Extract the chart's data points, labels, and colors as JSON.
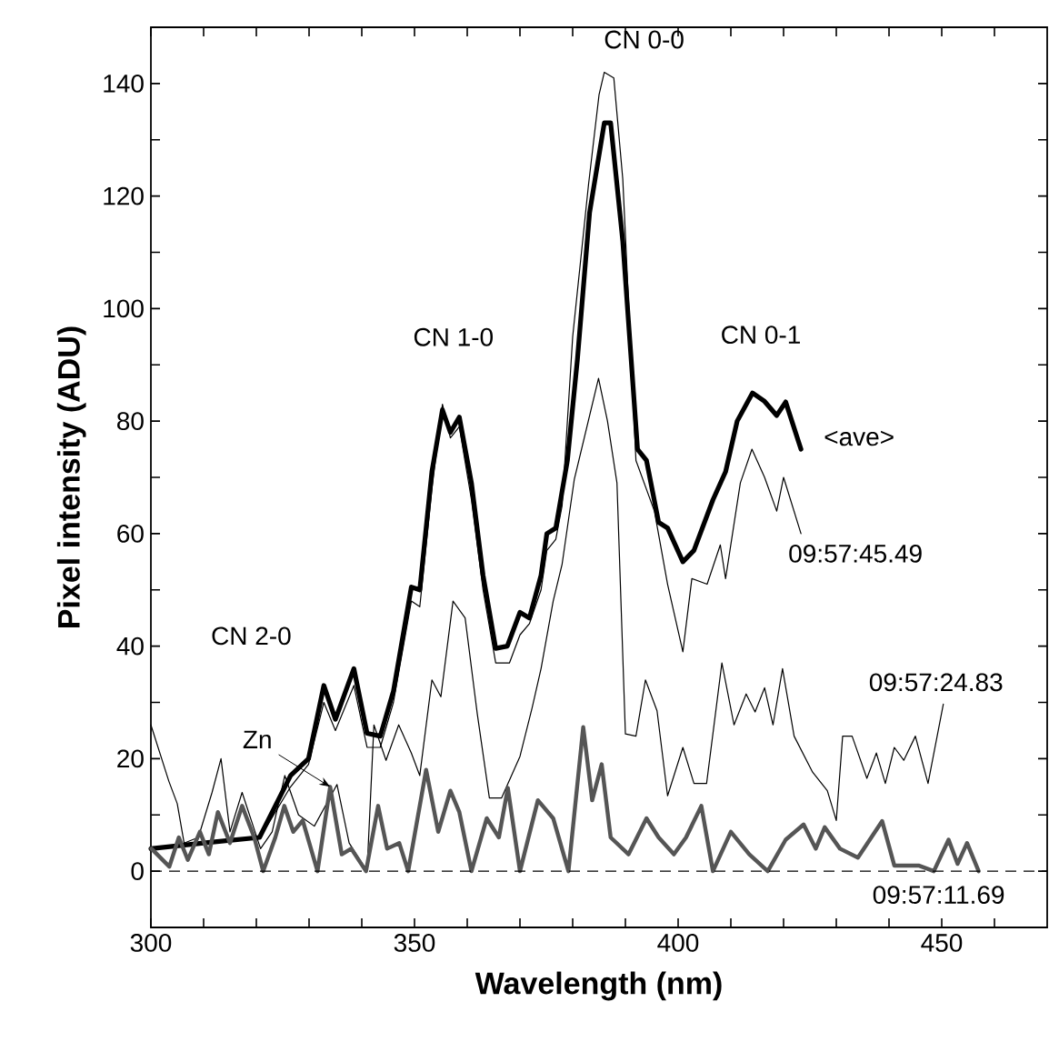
{
  "chart_data": {
    "type": "line",
    "xlabel": "Wavelength (nm)",
    "ylabel": "Pixel intensity (ADU)",
    "xlim": [
      300,
      470
    ],
    "ylim": [
      -10,
      150
    ],
    "xticks": [
      300,
      {
        "value": 310,
        "label": null
      },
      {
        "value": 320,
        "label": null
      },
      {
        "value": 330,
        "label": null
      },
      {
        "value": 340,
        "label": null
      },
      350,
      {
        "value": 360,
        "label": null
      },
      {
        "value": 370,
        "label": null
      },
      {
        "value": 380,
        "label": null
      },
      {
        "value": 390,
        "label": null
      },
      400,
      {
        "value": 410,
        "label": null
      },
      {
        "value": 420,
        "label": null
      },
      {
        "value": 430,
        "label": null
      },
      {
        "value": 440,
        "label": null
      },
      450,
      {
        "value": 460,
        "label": null
      }
    ],
    "yticks": [
      {
        "value": -10,
        "label": null
      },
      0,
      {
        "value": 10,
        "label": null
      },
      20,
      {
        "value": 30,
        "label": null
      },
      40,
      {
        "value": 50,
        "label": null
      },
      60,
      {
        "value": 70,
        "label": null
      },
      80,
      {
        "value": 90,
        "label": null
      },
      100,
      {
        "value": 110,
        "label": null
      },
      120,
      {
        "value": 130,
        "label": null
      },
      140
    ],
    "grid": false,
    "legend": false,
    "marker": "none",
    "line_style": "solid",
    "ref_lines": [
      {
        "axis": "y",
        "value": 0,
        "color": "#000000",
        "line_style": "dashed"
      }
    ],
    "annotations": [
      {
        "text": "CN 2-0",
        "x": 338,
        "y": 36
      },
      {
        "text": "CN 1-0",
        "x": 356,
        "y": 82
      },
      {
        "text": "CN 0-0",
        "x": 387,
        "y": 142
      },
      {
        "text": "CN 0-1",
        "x": 415,
        "y": 85
      },
      {
        "text": "Zn",
        "x": 334,
        "y": 15
      }
    ],
    "series": [
      {
        "name": "<ave>",
        "color": "#000000",
        "x": [
          300,
          310,
          320.6,
          326.5,
          329.9,
          332.8,
          335,
          338.5,
          341,
          343.5,
          346,
          349.4,
          351,
          353.3,
          355.3,
          356.8,
          358.5,
          360.8,
          363,
          365.4,
          367.6,
          370,
          371.8,
          374,
          375.1,
          376.8,
          379,
          380.9,
          383.2,
          386,
          387.2,
          389.5,
          392.3,
          394,
          396.3,
          398,
          400.9,
          403,
          406.6,
          409,
          411.2,
          414.1,
          416.4,
          418.7,
          420.4,
          423.3
        ],
        "values": [
          4,
          5,
          6,
          17,
          20,
          33,
          27,
          36,
          24.5,
          24,
          32,
          50.5,
          50,
          71,
          82,
          78,
          80.7,
          69,
          52.6,
          39.6,
          40,
          46,
          45,
          52.6,
          60,
          61,
          73,
          91,
          117,
          133,
          133,
          112,
          75,
          73,
          62,
          61,
          55,
          57,
          66,
          71,
          80,
          85,
          83.5,
          81,
          83.4,
          75
        ]
      },
      {
        "name": "09:57:45.49",
        "color": "#000000",
        "x": [
          322,
          326.5,
          329.9,
          332.8,
          335,
          338.5,
          341,
          343.5,
          346,
          349.4,
          351,
          353.3,
          355.3,
          356.8,
          358.5,
          360.8,
          363,
          365.4,
          368,
          370,
          371.8,
          374,
          375.1,
          376.8,
          378,
          380,
          383,
          385,
          386,
          387.8,
          389.5,
          392,
          395.5,
          398,
          400.9,
          402.6,
          405.5,
          408,
          409,
          411.8,
          414,
          416.4,
          418.7,
          420,
          423.3
        ],
        "values": [
          8,
          15,
          19,
          30,
          25,
          33,
          22,
          22,
          30,
          48,
          47,
          68,
          83,
          77,
          79,
          66,
          50,
          37,
          37,
          42,
          44,
          50,
          57,
          59,
          65,
          95,
          122,
          138,
          142,
          141,
          123,
          73,
          64,
          51,
          39,
          52,
          51,
          58,
          52,
          69,
          75,
          70,
          64,
          70,
          60
        ]
      },
      {
        "name": "09:57:24.83",
        "color": "#000000",
        "x": [
          300,
          303.4,
          305,
          306.3,
          309,
          311.6,
          313.3,
          315,
          317.3,
          320.8,
          323,
          325.4,
          328,
          331,
          335.3,
          337.6,
          341,
          342.3,
          344.6,
          347,
          349.4,
          351,
          353.3,
          355,
          357.3,
          359.6,
          361.9,
          364.2,
          366.5,
          370,
          372.3,
          374,
          376.3,
          378,
          380.3,
          384.9,
          386.6,
          388.4,
          390,
          392,
          393.8,
          396,
          398,
          400.9,
          403,
          405.4,
          408.3,
          410.6,
          412.9,
          414.6,
          416.4,
          418,
          419.8,
          422,
          425.5,
          428.3,
          430,
          431.2,
          433,
          435.8,
          437.6,
          439.3,
          441,
          442.8,
          445,
          447.4,
          450.3
        ],
        "values": [
          26,
          16,
          12,
          5,
          6,
          14,
          20,
          7,
          14,
          4,
          7,
          17,
          10,
          8,
          15.4,
          5,
          0,
          26,
          19.7,
          26,
          21,
          17,
          34,
          31,
          48,
          45,
          28,
          13,
          13,
          20.4,
          29,
          36,
          48,
          54.6,
          69.6,
          87.6,
          80,
          69,
          24.4,
          24,
          34,
          28.5,
          13.4,
          22,
          15.6,
          15.6,
          37,
          26,
          31.5,
          28.3,
          32.6,
          26,
          36,
          24,
          17.6,
          14.3,
          9,
          24,
          24,
          16.5,
          21,
          15.6,
          22,
          19.7,
          24,
          15.6,
          29.7
        ]
      },
      {
        "name": "09:57:11.69",
        "color": "#555555",
        "x": [
          300.1,
          303.5,
          305.3,
          307,
          309.3,
          311,
          312.7,
          315,
          317.3,
          319.6,
          321.3,
          323.6,
          325.3,
          327,
          328.8,
          331.6,
          334,
          336.2,
          338,
          340.8,
          343.1,
          344.8,
          347.1,
          348.8,
          352.2,
          354.5,
          356.8,
          358.5,
          360.8,
          363.7,
          366,
          367.7,
          370,
          373.4,
          376.3,
          379.2,
          382,
          383.7,
          385.5,
          387.2,
          390.6,
          394,
          396.3,
          399.2,
          401.5,
          404.4,
          406.6,
          410,
          413.5,
          417,
          420.4,
          423.8,
          426.1,
          427.8,
          430.7,
          434.1,
          438.7,
          441,
          445.6,
          448.5,
          451.3,
          453,
          454.8,
          457
        ],
        "values": [
          4,
          0.8,
          6,
          2,
          7,
          3,
          10.5,
          5,
          11.6,
          6,
          0,
          6,
          11.6,
          7,
          9,
          0,
          15,
          3,
          4,
          0,
          11.6,
          4,
          5,
          0,
          18,
          7,
          14.3,
          10.5,
          0,
          9.4,
          6,
          14.8,
          0,
          12.6,
          9.4,
          0,
          25.6,
          12.6,
          19,
          6,
          3,
          9.4,
          6,
          3,
          6,
          11.6,
          0,
          7,
          3,
          0,
          5.6,
          8.3,
          4,
          7.8,
          4,
          2.4,
          8.9,
          1,
          1,
          0,
          5.6,
          1.3,
          5,
          0
        ]
      }
    ]
  }
}
